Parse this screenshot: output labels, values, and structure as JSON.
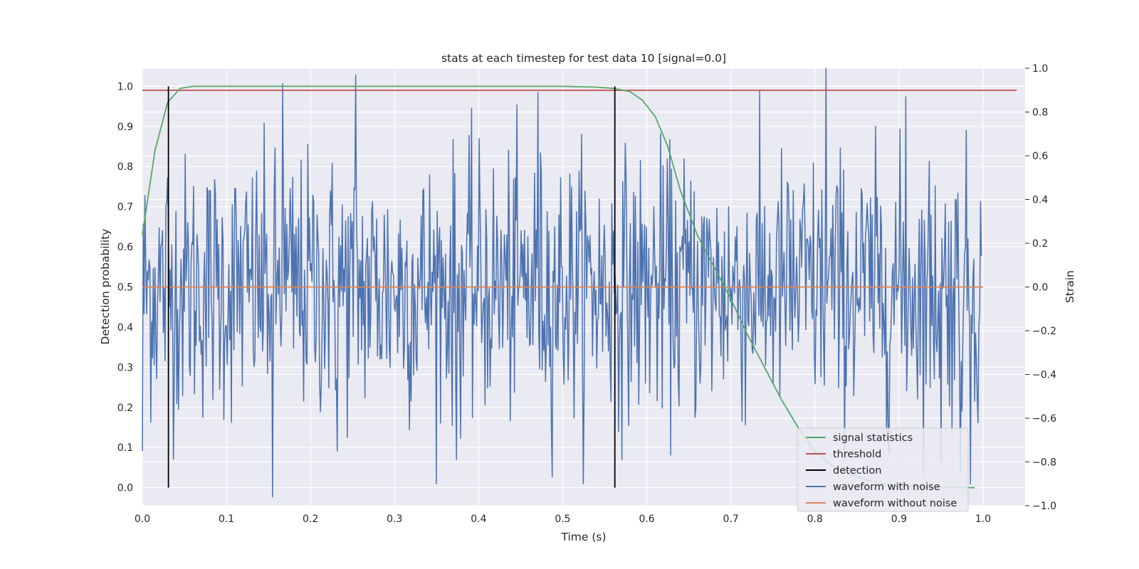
{
  "chart_data": {
    "type": "line",
    "title": "stats at each timestep for test data 10 [signal=0.0]",
    "xlabel": "Time (s)",
    "ylabel_left": "Detection probability",
    "ylabel_right": "Strain",
    "xlim": [
      0.0,
      1.05
    ],
    "ylim_left": [
      -0.045,
      1.045
    ],
    "ylim_right": [
      -1.0,
      1.0
    ],
    "x_ticks": [
      "0.0",
      "0.1",
      "0.2",
      "0.3",
      "0.4",
      "0.5",
      "0.6",
      "0.7",
      "0.8",
      "0.9",
      "1.0"
    ],
    "y_left_ticks": [
      "0.0",
      "0.1",
      "0.2",
      "0.3",
      "0.4",
      "0.5",
      "0.6",
      "0.7",
      "0.8",
      "0.9",
      "1.0"
    ],
    "y_right_ticks": [
      "−1.0",
      "−0.8",
      "−0.6",
      "−0.4",
      "−0.2",
      "0.0",
      "0.2",
      "0.4",
      "0.6",
      "0.8",
      "1.0"
    ],
    "grid": true,
    "legend_position": "lower-right",
    "legend": [
      {
        "label": "signal statistics",
        "color": "#55a868"
      },
      {
        "label": "threshold",
        "color": "#c44e52"
      },
      {
        "label": "detection",
        "color": "#000000"
      },
      {
        "label": "waveform with noise",
        "color": "#4c72b0"
      },
      {
        "label": "waveform without noise",
        "color": "#dd8452"
      }
    ],
    "signal_statistics": {
      "axis": "left",
      "x": [
        0.0,
        0.015,
        0.03,
        0.045,
        0.06,
        0.075,
        0.1,
        0.2,
        0.3,
        0.4,
        0.5,
        0.54,
        0.56,
        0.58,
        0.595,
        0.61,
        0.625,
        0.64,
        0.66,
        0.68,
        0.7,
        0.72,
        0.74,
        0.76,
        0.78,
        0.8,
        0.82,
        0.84,
        0.86,
        0.88,
        0.9,
        0.92,
        0.94,
        0.96,
        0.98,
        0.99
      ],
      "y": [
        0.63,
        0.84,
        0.96,
        0.995,
        1.0,
        1.0,
        1.0,
        1.0,
        1.0,
        1.0,
        1.0,
        0.998,
        0.995,
        0.987,
        0.965,
        0.925,
        0.85,
        0.74,
        0.63,
        0.55,
        0.47,
        0.38,
        0.3,
        0.22,
        0.15,
        0.09,
        0.055,
        0.035,
        0.02,
        0.01,
        0.005,
        0.002,
        0.001,
        0.0,
        0.0,
        0.0
      ]
    },
    "threshold": {
      "axis": "left",
      "value": 0.99,
      "x_range": [
        0.0,
        1.04
      ]
    },
    "detections": {
      "axis": "left",
      "x": [
        0.031,
        0.562
      ],
      "y_range": [
        0.0,
        1.0
      ]
    },
    "waveform_with_noise": {
      "axis": "right",
      "x_range": [
        0.0,
        0.998
      ],
      "num_samples": 1000,
      "std": 0.3,
      "min": -0.95,
      "max": 1.0,
      "peaks": [
        [
          0.0,
          -0.75
        ],
        [
          0.03,
          0.5
        ],
        [
          0.155,
          -0.96
        ],
        [
          0.167,
          0.93
        ],
        [
          0.232,
          -0.75
        ],
        [
          0.254,
          0.97
        ],
        [
          0.374,
          -0.79
        ],
        [
          0.471,
          0.89
        ],
        [
          0.813,
          1.0
        ],
        [
          0.908,
          0.87
        ],
        [
          0.95,
          -0.8
        ],
        [
          0.973,
          -0.85
        ],
        [
          0.985,
          -0.9
        ]
      ]
    },
    "waveform_without_noise": {
      "axis": "right",
      "x_range": [
        0.0,
        1.0
      ],
      "value": 0.0
    }
  }
}
